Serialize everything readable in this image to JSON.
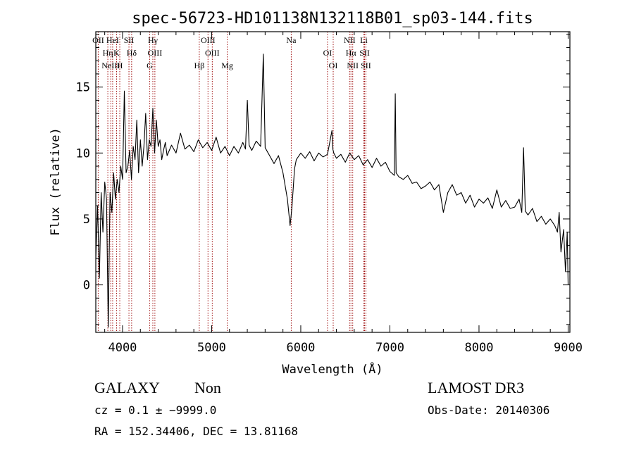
{
  "chart_data": {
    "type": "line",
    "title": "spec-56723-HD101138N132118B01_sp03-144.fits",
    "xlabel": "Wavelength (Å)",
    "ylabel": "Flux (relative)",
    "xlim": [
      3700,
      9020
    ],
    "ylim": [
      -3.6,
      19.2
    ],
    "x_ticks": [
      4000,
      5000,
      6000,
      7000,
      8000,
      9000
    ],
    "y_ticks": [
      0,
      5,
      10,
      15
    ],
    "grid": false,
    "series": [
      {
        "color": "#000000",
        "x": [
          3700,
          3720,
          3740,
          3760,
          3780,
          3800,
          3820,
          3840,
          3860,
          3880,
          3900,
          3920,
          3940,
          3960,
          3980,
          4000,
          4020,
          4040,
          4060,
          4080,
          4100,
          4120,
          4140,
          4160,
          4180,
          4200,
          4220,
          4240,
          4260,
          4280,
          4300,
          4320,
          4340,
          4360,
          4380,
          4400,
          4420,
          4440,
          4460,
          4480,
          4500,
          4550,
          4600,
          4650,
          4700,
          4750,
          4800,
          4850,
          4900,
          4950,
          5000,
          5050,
          5100,
          5150,
          5200,
          5250,
          5300,
          5350,
          5380,
          5400,
          5420,
          5450,
          5500,
          5550,
          5580,
          5600,
          5650,
          5700,
          5750,
          5800,
          5850,
          5880,
          5900,
          5930,
          5950,
          6000,
          6050,
          6100,
          6150,
          6200,
          6250,
          6300,
          6350,
          6360,
          6370,
          6400,
          6450,
          6500,
          6550,
          6600,
          6650,
          6700,
          6750,
          6800,
          6850,
          6900,
          6950,
          7000,
          7050,
          7060,
          7070,
          7100,
          7150,
          7200,
          7250,
          7300,
          7350,
          7400,
          7450,
          7500,
          7550,
          7600,
          7650,
          7700,
          7750,
          7800,
          7850,
          7900,
          7950,
          8000,
          8050,
          8100,
          8150,
          8200,
          8250,
          8300,
          8350,
          8400,
          8450,
          8480,
          8500,
          8520,
          8550,
          8600,
          8650,
          8700,
          8750,
          8800,
          8850,
          8880,
          8900,
          8920,
          8950,
          8970,
          8990,
          9000
        ],
        "values": [
          2.0,
          6.0,
          0.5,
          7.0,
          4.0,
          7.8,
          6.5,
          -3.2,
          7.0,
          5.5,
          8.5,
          6.5,
          8.0,
          7.0,
          9.0,
          8.0,
          14.7,
          8.5,
          9.0,
          10.2,
          8.0,
          10.5,
          9.5,
          12.5,
          8.5,
          11.0,
          9.0,
          10.5,
          13.0,
          9.5,
          11.0,
          10.5,
          13.4,
          10.0,
          12.5,
          10.5,
          11.0,
          9.5,
          10.2,
          10.8,
          9.8,
          10.6,
          10.0,
          11.5,
          10.3,
          10.6,
          10.1,
          11.0,
          10.4,
          10.8,
          10.2,
          11.2,
          10.0,
          10.5,
          9.8,
          10.5,
          10.0,
          10.8,
          10.3,
          14.0,
          10.6,
          10.2,
          10.9,
          10.5,
          17.5,
          10.4,
          9.8,
          9.2,
          9.8,
          8.5,
          6.5,
          4.5,
          5.8,
          8.8,
          9.5,
          10.0,
          9.6,
          10.1,
          9.4,
          10.0,
          9.7,
          9.9,
          11.7,
          10.3,
          10.0,
          9.6,
          9.9,
          9.3,
          10.0,
          9.5,
          9.8,
          9.1,
          9.5,
          8.9,
          9.6,
          9.0,
          9.3,
          8.6,
          8.3,
          14.5,
          8.5,
          8.2,
          8.0,
          8.3,
          7.7,
          7.8,
          7.3,
          7.5,
          7.8,
          7.2,
          7.6,
          5.5,
          7.0,
          7.6,
          6.8,
          7.0,
          6.2,
          6.8,
          5.9,
          6.5,
          6.2,
          6.6,
          5.8,
          7.2,
          5.9,
          6.4,
          5.8,
          5.9,
          6.5,
          5.5,
          10.4,
          5.6,
          5.3,
          5.8,
          4.8,
          5.2,
          4.6,
          5.0,
          4.5,
          4.0,
          5.5,
          2.5,
          4.2,
          1.0,
          4.0,
          0.0
        ]
      }
    ],
    "line_markers": [
      {
        "x": 3727,
        "label": "OII"
      },
      {
        "x": 3835,
        "label": "Hη"
      },
      {
        "x": 3868,
        "label": "NeIII"
      },
      {
        "x": 3889,
        "label": "HeI"
      },
      {
        "x": 3933,
        "label": "K"
      },
      {
        "x": 3969,
        "label": "H"
      },
      {
        "x": 4102,
        "label": "Hδ"
      },
      {
        "x": 4072,
        "label": "SII"
      },
      {
        "x": 4340,
        "label": "Hγ"
      },
      {
        "x": 4304,
        "label": "G"
      },
      {
        "x": 4363,
        "label": "OIII"
      },
      {
        "x": 4861,
        "label": "Hβ"
      },
      {
        "x": 4959,
        "label": "OIII"
      },
      {
        "x": 5007,
        "label": "OIII"
      },
      {
        "x": 5175,
        "label": "Mg"
      },
      {
        "x": 5893,
        "label": "Na"
      },
      {
        "x": 6300,
        "label": "OI"
      },
      {
        "x": 6364,
        "label": "OI"
      },
      {
        "x": 6548,
        "label": "NII"
      },
      {
        "x": 6563,
        "label": "Hα"
      },
      {
        "x": 6583,
        "label": "NII"
      },
      {
        "x": 6708,
        "label": "Li"
      },
      {
        "x": 6716,
        "label": "SII"
      },
      {
        "x": 6731,
        "label": "SII"
      }
    ]
  },
  "info": {
    "class_label": "GALAXY",
    "subclass": "Non",
    "cz": "cz = 0.1 ± −9999.0",
    "coords": "RA = 152.34406, DEC =  13.81168",
    "survey": "LAMOST DR3",
    "obs_date": "Obs-Date: 20140306"
  }
}
